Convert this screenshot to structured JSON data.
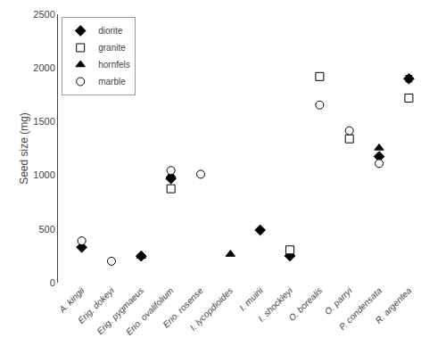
{
  "chart_data": {
    "type": "scatter",
    "ylabel": "Seed size (mg)",
    "categories": [
      "A. kingii",
      "Erig. dokeyi",
      "Erig. pygmaeus",
      "Erio. ovalifolium",
      "Erio. rosense",
      "I. lycopdioides",
      "I. muirii",
      "I. shockleyi",
      "O. borealis",
      "O. parryi",
      "P. condensata",
      "R. argentea"
    ],
    "series": [
      {
        "name": "diorite",
        "marker": "diamond",
        "color": "black",
        "values": [
          330,
          null,
          248,
          970,
          null,
          null,
          490,
          250,
          null,
          null,
          1175,
          1900
        ],
        "errors": [
          null,
          null,
          null,
          null,
          null,
          null,
          null,
          null,
          null,
          null,
          null,
          30
        ]
      },
      {
        "name": "granite",
        "marker": "square",
        "color": "white",
        "values": [
          null,
          null,
          null,
          875,
          null,
          null,
          null,
          305,
          1920,
          1340,
          null,
          1720
        ],
        "errors": [
          null,
          null,
          null,
          null,
          null,
          null,
          null,
          null,
          null,
          null,
          null,
          30
        ]
      },
      {
        "name": "hornfels",
        "marker": "triangle-up",
        "color": "black",
        "values": [
          null,
          null,
          248,
          1000,
          null,
          265,
          null,
          null,
          null,
          null,
          1255,
          null
        ]
      },
      {
        "name": "marble",
        "marker": "circle",
        "color": "white",
        "values": [
          390,
          200,
          null,
          1045,
          1010,
          null,
          null,
          null,
          1655,
          1415,
          1110,
          null
        ]
      }
    ],
    "ylim": [
      0,
      2500
    ],
    "yticks": [
      0,
      500,
      1000,
      1500,
      2000,
      2500
    ],
    "grid": false,
    "legend": "upper left"
  }
}
